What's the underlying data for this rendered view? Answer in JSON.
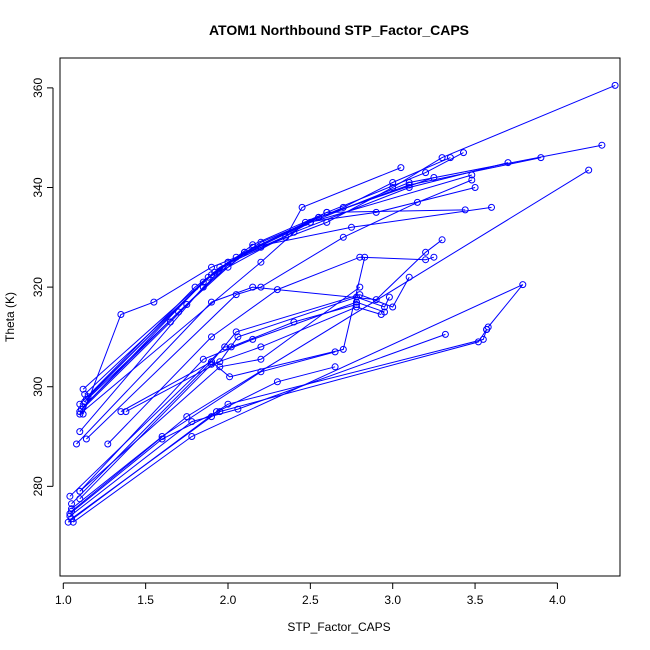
{
  "chart_data": {
    "type": "line",
    "title": "ATOM1 Northbound STP_Factor_CAPS",
    "xlabel": "STP_Factor_CAPS",
    "ylabel": "Theta (K)",
    "xlim": [
      0.98,
      4.38
    ],
    "ylim": [
      262,
      366
    ],
    "xticks": [
      "1.0",
      "1.5",
      "2.0",
      "2.5",
      "3.0",
      "3.5",
      "4.0"
    ],
    "yticks": [
      "280",
      "300",
      "320",
      "340",
      "360"
    ],
    "grid": false,
    "legend": "none",
    "series_color": "#0000ff",
    "marker": "open-circle",
    "series": [
      {
        "x": [
          1.12,
          1.35,
          1.55,
          1.9,
          2.2,
          2.6,
          3.0,
          3.3,
          4.35
        ],
        "y": [
          294.5,
          314.5,
          317,
          324,
          328,
          333,
          340,
          346,
          360.5
        ]
      },
      {
        "x": [
          1.1,
          1.65,
          2.0,
          2.4,
          3.1,
          3.7
        ],
        "y": [
          295,
          313,
          325,
          331,
          340,
          345
        ]
      },
      {
        "x": [
          1.12,
          1.7,
          2.05,
          2.5,
          3.1,
          4.27
        ],
        "y": [
          296,
          315,
          326,
          333,
          341,
          348.5
        ]
      },
      {
        "x": [
          1.13,
          1.75,
          2.1,
          2.55,
          3.1,
          3.9
        ],
        "y": [
          297,
          316.5,
          327,
          334,
          340.5,
          346
        ]
      },
      {
        "x": [
          1.14,
          1.85,
          2.15,
          2.6,
          3.2,
          3.43
        ],
        "y": [
          297.5,
          321,
          328.5,
          335,
          343,
          347
        ]
      },
      {
        "x": [
          1.15,
          1.9,
          2.2,
          2.7,
          3.0,
          3.35
        ],
        "y": [
          298,
          322.5,
          329,
          336,
          341,
          346
        ]
      },
      {
        "x": [
          1.12,
          1.95,
          2.35,
          2.45,
          3.05
        ],
        "y": [
          299.5,
          324,
          330,
          336,
          344
        ]
      },
      {
        "x": [
          1.1,
          1.8,
          2.0,
          2.55,
          3.25
        ],
        "y": [
          296.5,
          320,
          325,
          334,
          342
        ]
      },
      {
        "x": [
          1.11,
          1.88,
          2.0,
          2.5,
          3.48
        ],
        "y": [
          295.5,
          322,
          324,
          333,
          342.5
        ]
      },
      {
        "x": [
          1.13,
          1.92,
          2.1,
          2.6,
          3.44
        ],
        "y": [
          298.5,
          323,
          327,
          335,
          335.5
        ]
      },
      {
        "x": [
          1.1,
          1.85,
          2.15,
          2.75,
          3.6
        ],
        "y": [
          291,
          320,
          328,
          332,
          336
        ]
      },
      {
        "x": [
          1.1,
          2.2,
          2.47,
          2.9,
          3.5
        ],
        "y": [
          294.5,
          325,
          333,
          335,
          340
        ]
      },
      {
        "x": [
          1.14,
          2.05,
          2.2,
          2.7,
          3.15,
          3.48
        ],
        "y": [
          289.5,
          318.5,
          320,
          330,
          337,
          341.5
        ]
      },
      {
        "x": [
          1.08,
          1.9,
          2.15,
          2.9,
          3.2,
          3.3
        ],
        "y": [
          288.5,
          317,
          320,
          317.5,
          327,
          329.5
        ]
      },
      {
        "x": [
          1.27,
          1.9,
          2.3,
          2.8,
          3.2,
          3.25
        ],
        "y": [
          288.5,
          310,
          319.5,
          326,
          325.5,
          326
        ]
      },
      {
        "x": [
          1.35,
          1.9,
          2.05,
          2.8,
          3.0,
          3.1
        ],
        "y": [
          295,
          305,
          311,
          318.5,
          316,
          322
        ]
      },
      {
        "x": [
          1.38,
          1.95,
          2.06,
          2.78,
          2.95,
          2.98
        ],
        "y": [
          295,
          305,
          310,
          318,
          316,
          318
        ]
      },
      {
        "x": [
          1.1,
          1.85,
          2.15,
          2.78,
          2.95
        ],
        "y": [
          279,
          305.5,
          309.5,
          317,
          315
        ]
      },
      {
        "x": [
          1.1,
          1.9,
          2.2,
          2.78,
          2.93
        ],
        "y": [
          277.5,
          304.5,
          308,
          316,
          314.5
        ]
      },
      {
        "x": [
          1.1,
          1.95,
          2.2,
          2.8
        ],
        "y": [
          279,
          304,
          305.5,
          320
        ]
      },
      {
        "x": [
          1.04,
          1.98,
          2.02,
          2.4,
          2.78
        ],
        "y": [
          278,
          308,
          308,
          313,
          316.5
        ]
      },
      {
        "x": [
          1.05,
          1.9,
          2.01,
          2.7,
          2.83
        ],
        "y": [
          276.5,
          305,
          302,
          307.5,
          326
        ]
      },
      {
        "x": [
          1.05,
          1.6,
          2.2,
          2.65
        ],
        "y": [
          275.5,
          290,
          303,
          307
        ]
      },
      {
        "x": [
          1.04,
          1.6,
          2.3,
          2.65
        ],
        "y": [
          274.5,
          289.5,
          301,
          304
        ]
      },
      {
        "x": [
          1.04,
          1.78,
          2.06,
          3.32
        ],
        "y": [
          274,
          293,
          295.5,
          310.5
        ]
      },
      {
        "x": [
          1.05,
          1.9,
          1.95,
          3.52,
          3.57
        ],
        "y": [
          273.5,
          294,
          295,
          309,
          311.5
        ]
      },
      {
        "x": [
          1.03,
          1.93,
          2.0,
          3.55,
          3.57
        ],
        "y": [
          272.8,
          295,
          296.5,
          309.5,
          311.5
        ]
      },
      {
        "x": [
          1.06,
          1.78,
          3.79,
          3.58
        ],
        "y": [
          272.8,
          290,
          320.5,
          312
        ]
      },
      {
        "x": [
          1.05,
          1.75,
          4.19
        ],
        "y": [
          275,
          294,
          343.5
        ]
      }
    ]
  }
}
